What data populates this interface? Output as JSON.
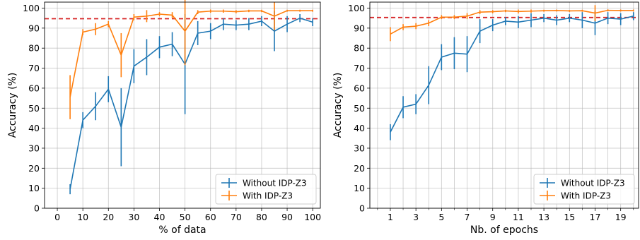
{
  "chart_data": [
    {
      "type": "line",
      "xlabel": "% of data",
      "ylabel": "Accuracy (%)",
      "xlim": [
        -5,
        103
      ],
      "ylim": [
        0,
        103
      ],
      "xticks": [
        0,
        10,
        20,
        30,
        40,
        50,
        60,
        70,
        80,
        90,
        100
      ],
      "yticks": [
        0,
        10,
        20,
        30,
        40,
        50,
        60,
        70,
        80,
        90,
        100
      ],
      "grid": true,
      "legend_position": "lower-right",
      "reference_line": {
        "y": 94.7,
        "color": "#d62728",
        "style": "dashed"
      },
      "series": [
        {
          "name": "Without IDP-Z3",
          "color": "#1f77b4",
          "x": [
            5,
            10,
            15,
            20,
            25,
            30,
            35,
            40,
            45,
            50,
            55,
            60,
            65,
            70,
            75,
            80,
            85,
            90,
            95,
            100
          ],
          "y": [
            9.5,
            44,
            51,
            59.5,
            40.5,
            71,
            75.5,
            80.5,
            82,
            72,
            87.5,
            88.5,
            92,
            91.5,
            92,
            93.5,
            88.5,
            92,
            95,
            93
          ],
          "err": [
            2.5,
            4,
            7,
            6.5,
            19.5,
            8.5,
            9,
            5.5,
            6,
            25,
            6,
            4,
            3,
            2.5,
            3,
            2.5,
            10,
            4,
            2,
            2
          ]
        },
        {
          "name": "With IDP-Z3",
          "color": "#ff7f0e",
          "x": [
            5,
            10,
            15,
            20,
            25,
            30,
            35,
            40,
            45,
            50,
            55,
            60,
            65,
            70,
            75,
            80,
            85,
            90,
            95,
            100
          ],
          "y": [
            55.5,
            88,
            89.5,
            92,
            76.5,
            95.5,
            96,
            97,
            96.5,
            88.5,
            98,
            98.5,
            98.5,
            98.2,
            98.6,
            98.6,
            96,
            98.7,
            98.7,
            98.7
          ],
          "err": [
            11,
            1.5,
            3,
            1.5,
            11,
            1.5,
            3,
            1,
            1.5,
            17,
            1,
            0.8,
            0.8,
            0.8,
            0.6,
            0.6,
            7,
            0.5,
            0.5,
            0.5
          ]
        }
      ]
    },
    {
      "type": "line",
      "xlabel": "Nb. of epochs",
      "ylabel": "Accuracy (%)",
      "xlim": [
        -0.6,
        20.4
      ],
      "ylim": [
        0,
        103
      ],
      "xticks": [
        1,
        3,
        5,
        7,
        9,
        11,
        13,
        15,
        17,
        19
      ],
      "minor_xticks": [
        0,
        2,
        4,
        6,
        8,
        10,
        12,
        14,
        16,
        18,
        20
      ],
      "yticks": [
        0,
        10,
        20,
        30,
        40,
        50,
        60,
        70,
        80,
        90,
        100
      ],
      "grid": true,
      "legend_position": "lower-right",
      "reference_line": {
        "y": 95.3,
        "color": "#d62728",
        "style": "dashed"
      },
      "series": [
        {
          "name": "Without IDP-Z3",
          "color": "#1f77b4",
          "x": [
            1,
            2,
            3,
            4,
            5,
            6,
            7,
            8,
            9,
            10,
            11,
            12,
            13,
            14,
            15,
            16,
            17,
            18,
            19,
            20
          ],
          "y": [
            38,
            50.5,
            52,
            61.5,
            75.5,
            77.5,
            77,
            88.5,
            91.5,
            93.5,
            93,
            94,
            95,
            94,
            95,
            94,
            92.5,
            95,
            94.5,
            96
          ],
          "err": [
            4,
            5.5,
            5,
            9.5,
            6.5,
            8,
            9,
            6,
            3,
            2,
            3,
            3.5,
            2,
            2.5,
            2,
            4,
            6,
            3,
            3,
            2
          ]
        },
        {
          "name": "With IDP-Z3",
          "color": "#ff7f0e",
          "x": [
            1,
            2,
            3,
            4,
            5,
            6,
            7,
            8,
            9,
            10,
            11,
            12,
            13,
            14,
            15,
            16,
            17,
            18,
            19,
            20
          ],
          "y": [
            87,
            90.5,
            91,
            92.5,
            95.5,
            95.5,
            96,
            98,
            98.2,
            98.6,
            98.3,
            98.5,
            98.7,
            98.8,
            98.6,
            98.7,
            97.5,
            98.9,
            98.8,
            98.8
          ],
          "err": [
            3.5,
            1.5,
            1.5,
            1.5,
            1,
            1,
            1.5,
            1,
            0.8,
            0.6,
            1,
            0.8,
            0.5,
            0.5,
            0.5,
            0.5,
            4,
            0.5,
            0.5,
            0.5
          ]
        }
      ]
    }
  ]
}
